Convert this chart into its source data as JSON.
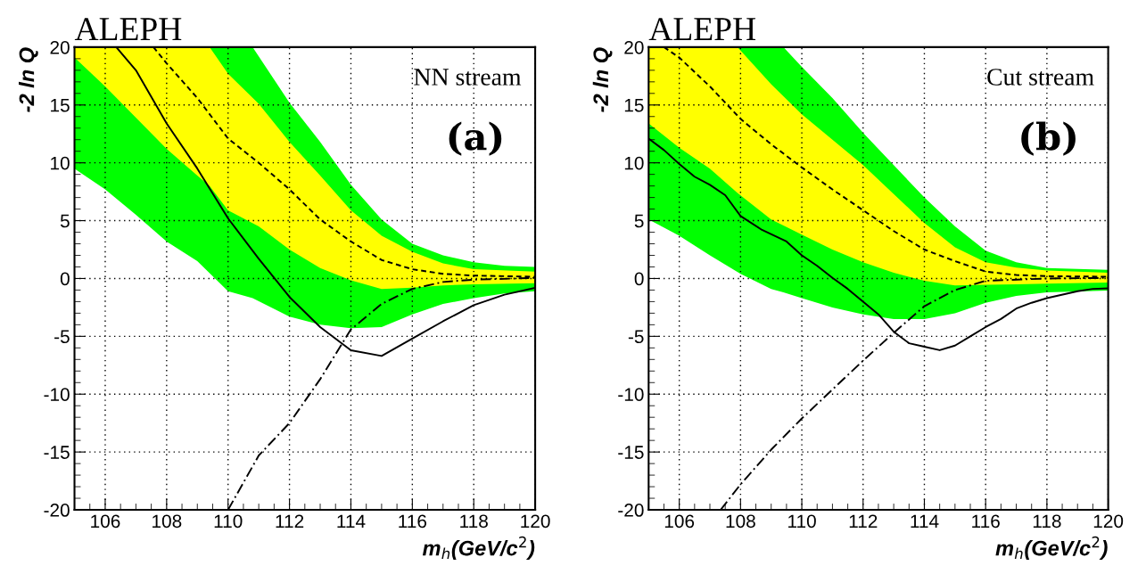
{
  "chart_data": [
    {
      "type": "line",
      "title": "ALEPH",
      "xlabel": "m$_{h}$(GeV/c$^{2}$)",
      "ylabel": "-2 ln Q",
      "annotations": [
        "NN stream",
        "(a)"
      ],
      "xlim": [
        105,
        120
      ],
      "ylim": [
        -20,
        20
      ],
      "xticks": [
        106,
        108,
        110,
        112,
        114,
        116,
        118,
        120
      ],
      "yticks": [
        -20,
        -15,
        -10,
        -5,
        0,
        5,
        10,
        15,
        20
      ],
      "grid": true,
      "series": [
        {
          "color": "#00ff00",
          "x": [
            105,
            106,
            107,
            108,
            109,
            110,
            110.8,
            112,
            113,
            114,
            115,
            116,
            117,
            118,
            119,
            120
          ],
          "values": [
            null,
            null,
            null,
            null,
            null,
            null,
            null,
            null,
            null,
            null,
            null,
            null,
            null,
            null,
            null,
            null
          ],
          "upper": [
            20,
            20,
            20,
            20,
            20,
            20,
            20,
            15.2,
            11.8,
            8.1,
            5.1,
            3.0,
            2.0,
            1.4,
            1.1,
            1.0
          ],
          "lower": [
            9.5,
            7.7,
            5.5,
            3.2,
            1.5,
            -1.1,
            -1.7,
            -3.3,
            -4.0,
            -4.3,
            -4.2,
            -3.1,
            -2.2,
            -1.7,
            -1.3,
            -1.1
          ]
        },
        {
          "color": "#ffff00",
          "x": [
            105,
            106,
            108,
            109,
            109.4,
            110,
            111,
            112,
            113,
            114,
            115,
            116,
            117,
            118,
            120
          ],
          "values": [
            null,
            null,
            null,
            null,
            null,
            null,
            null,
            null,
            null,
            null,
            null,
            null,
            null,
            null,
            null
          ],
          "upper": [
            20,
            20,
            20,
            20,
            20,
            17.7,
            15.1,
            11.8,
            8.9,
            5.9,
            3.7,
            2.3,
            1.3,
            0.8,
            0.6
          ],
          "lower": [
            19.1,
            16.6,
            11.2,
            8.9,
            8.0,
            5.9,
            4.5,
            2.5,
            0.9,
            -0.15,
            -0.9,
            -0.8,
            -0.6,
            -0.5,
            -0.4
          ]
        },
        {
          "color": "#000000",
          "line_style": "solid",
          "x": [
            106.36,
            107,
            108,
            109,
            110,
            111,
            112,
            113,
            114,
            115,
            116,
            117,
            118,
            119,
            120
          ],
          "values": [
            20,
            18,
            13.4,
            9.5,
            5.2,
            1.7,
            -1.6,
            -4.2,
            -6.2,
            -6.7,
            -5.2,
            -3.7,
            -2.3,
            -1.4,
            -0.8
          ]
        },
        {
          "color": "#000000",
          "line_style": "dashed",
          "x": [
            107.57,
            108,
            109,
            110,
            111,
            112,
            113,
            114,
            115,
            116,
            117,
            118,
            120
          ],
          "values": [
            20,
            18.6,
            15.6,
            12.1,
            10.0,
            7.7,
            5.1,
            3.2,
            1.6,
            0.8,
            0.4,
            0.25,
            0.15
          ]
        },
        {
          "color": "#000000",
          "line_style": "dashdot",
          "x": [
            110,
            111,
            112,
            113,
            114,
            115,
            116,
            117,
            118,
            120
          ],
          "values": [
            -20,
            -15.3,
            -12.5,
            -8.7,
            -4.4,
            -2.2,
            -0.9,
            -0.3,
            -0.1,
            0.05
          ]
        }
      ]
    },
    {
      "type": "line",
      "title": "ALEPH",
      "xlabel": "m$_{h}$(GeV/c$^{2}$)",
      "ylabel": "-2 ln Q",
      "annotations": [
        "Cut stream",
        "(b)"
      ],
      "xlim": [
        105,
        120
      ],
      "ylim": [
        -20,
        20
      ],
      "xticks": [
        106,
        108,
        110,
        112,
        114,
        116,
        118,
        120
      ],
      "yticks": [
        -20,
        -15,
        -10,
        -5,
        0,
        5,
        10,
        15,
        20
      ],
      "grid": true,
      "series": [
        {
          "color": "#00ff00",
          "x": [
            105,
            106,
            107,
            108,
            109,
            109.4,
            110,
            111,
            112,
            113,
            114,
            115,
            116,
            117,
            118,
            120
          ],
          "values": [
            null,
            null,
            null,
            null,
            null,
            null,
            null,
            null,
            null,
            null,
            null,
            null,
            null,
            null,
            null,
            null
          ],
          "upper": [
            20,
            20,
            20,
            20,
            20,
            20,
            18.3,
            15.6,
            12.6,
            9.8,
            7.0,
            4.5,
            2.4,
            1.4,
            0.9,
            0.75
          ],
          "lower": [
            5.1,
            3.7,
            2.0,
            0.4,
            -0.9,
            -1.2,
            -1.7,
            -2.5,
            -3.1,
            -3.5,
            -3.5,
            -3.0,
            -2.1,
            -1.5,
            -1.2,
            -1.05
          ]
        },
        {
          "color": "#ffff00",
          "x": [
            105,
            106,
            107,
            107.9,
            109,
            110,
            111,
            112,
            113,
            114,
            115,
            116,
            117,
            118,
            120
          ],
          "values": [
            null,
            null,
            null,
            null,
            null,
            null,
            null,
            null,
            null,
            null,
            null,
            null,
            null,
            null,
            null
          ],
          "upper": [
            20,
            20,
            20,
            20,
            16.8,
            14.2,
            12.0,
            9.8,
            7.3,
            4.8,
            2.7,
            1.4,
            0.95,
            0.7,
            0.5
          ],
          "lower": [
            13.4,
            11.3,
            9.5,
            7.4,
            5.1,
            3.8,
            2.5,
            1.4,
            0.5,
            -0.2,
            -0.6,
            -0.55,
            -0.5,
            -0.45,
            -0.35
          ]
        },
        {
          "color": "#000000",
          "line_style": "solid",
          "x": [
            105,
            105.5,
            106,
            106.5,
            107,
            107.5,
            108,
            108.7,
            109.5,
            110,
            110.5,
            111,
            111.5,
            112,
            112.5,
            113,
            113.5,
            114,
            114.5,
            115,
            115.5,
            116,
            116.5,
            117,
            117.5,
            118,
            119,
            119.5,
            120
          ],
          "values": [
            12.1,
            11.1,
            9.9,
            8.8,
            8.1,
            7.2,
            5.4,
            4.2,
            3.2,
            2.0,
            1.1,
            0.05,
            -0.9,
            -2.0,
            -3.1,
            -4.6,
            -5.6,
            -5.9,
            -6.2,
            -5.8,
            -5.0,
            -4.2,
            -3.5,
            -2.6,
            -2.1,
            -1.7,
            -1.1,
            -0.9,
            -0.85
          ]
        },
        {
          "color": "#000000",
          "line_style": "dashed",
          "x": [
            105.5,
            106,
            107,
            108,
            109,
            110,
            111,
            112,
            113,
            114,
            115,
            116,
            117,
            118,
            120
          ],
          "values": [
            20,
            19.1,
            16.6,
            13.8,
            11.6,
            9.6,
            7.7,
            5.9,
            4.1,
            2.5,
            1.5,
            0.6,
            0.3,
            0.2,
            0.15
          ]
        },
        {
          "color": "#000000",
          "line_style": "dashdot",
          "x": [
            107.35,
            108,
            109,
            110,
            111,
            112,
            113,
            114,
            115,
            116,
            118,
            120
          ],
          "values": [
            -20,
            -17.8,
            -14.8,
            -12.1,
            -9.6,
            -7.1,
            -4.7,
            -2.4,
            -1.0,
            -0.2,
            0,
            0.05
          ]
        }
      ]
    }
  ]
}
